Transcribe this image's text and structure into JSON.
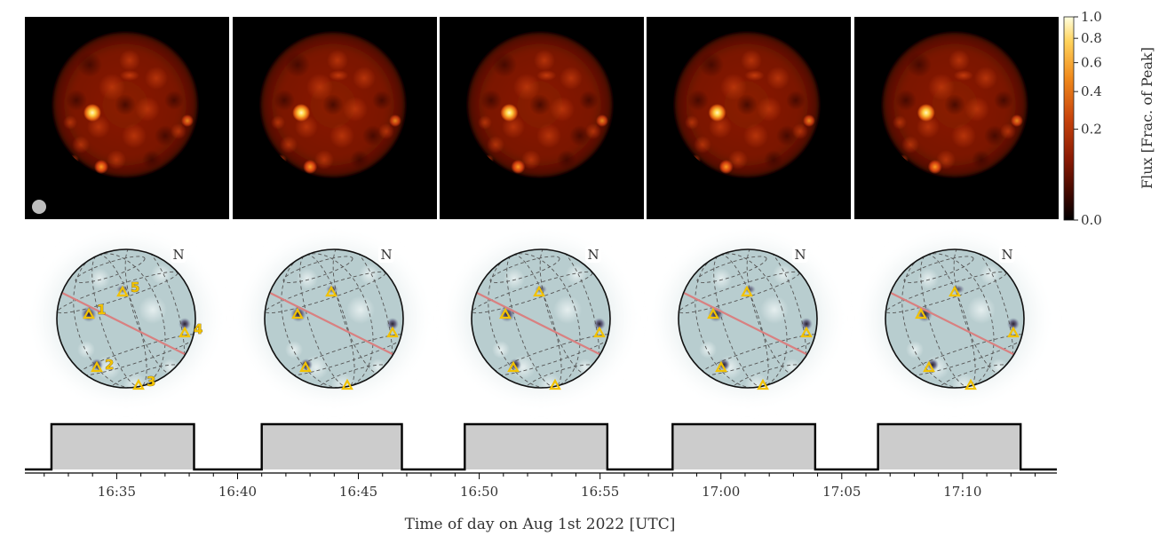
{
  "colorbar": {
    "label": "Flux [Frac. of Peak]",
    "ticks": [
      {
        "label": "1.0",
        "value": 1.0
      },
      {
        "label": "0.8",
        "value": 0.8
      },
      {
        "label": "0.6",
        "value": 0.6
      },
      {
        "label": "0.4",
        "value": 0.4
      },
      {
        "label": "0.2",
        "value": 0.2
      },
      {
        "label": "0.0",
        "value": 0.0
      }
    ]
  },
  "compass_label": "N",
  "hotspot_labels": [
    "1",
    "2",
    "3",
    "4",
    "5"
  ],
  "timeline": {
    "xlabel": "Time of day on Aug 1st 2022 [UTC]",
    "ticks": [
      "16:35",
      "16:40",
      "16:45",
      "16:50",
      "16:55",
      "17:00",
      "17:05",
      "17:10"
    ],
    "x_range_min": [
      31.2,
      73.9
    ],
    "exposures": [
      {
        "start_min": 32.3,
        "end_min": 38.2
      },
      {
        "start_min": 41.0,
        "end_min": 46.8
      },
      {
        "start_min": 49.4,
        "end_min": 55.3
      },
      {
        "start_min": 58.0,
        "end_min": 63.9
      },
      {
        "start_min": 66.5,
        "end_min": 72.4
      }
    ]
  },
  "colors": {
    "disk_map_bg": "#b8cdcf",
    "equator_line": "#d98080",
    "hotspot_marker": "#f2c200",
    "exposure_fill": "#cccccc"
  }
}
